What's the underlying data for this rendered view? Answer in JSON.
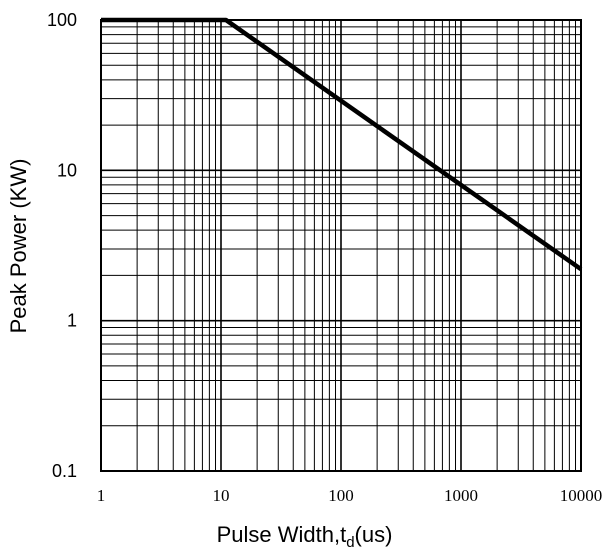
{
  "chart_data": {
    "type": "line",
    "xlabel_main": "Pulse Width,t",
    "xlabel_sub": "d",
    "xlabel_suffix": "(us)",
    "ylabel": "Peak Power (KW)",
    "xscale": "log",
    "yscale": "log",
    "xlim": [
      1,
      10000
    ],
    "ylim": [
      0.1,
      100
    ],
    "xticks": [
      "1",
      "10",
      "100",
      "1000",
      "10000"
    ],
    "yticks": [
      "0.1",
      "1",
      "10",
      "100"
    ],
    "grid": true,
    "legend": "none",
    "series": [
      {
        "x": [
          1,
          11,
          10000
        ],
        "y": [
          100,
          100,
          2.2
        ]
      }
    ],
    "colors": {
      "line": "#000000",
      "grid": "#000000",
      "background": "#ffffff"
    }
  }
}
